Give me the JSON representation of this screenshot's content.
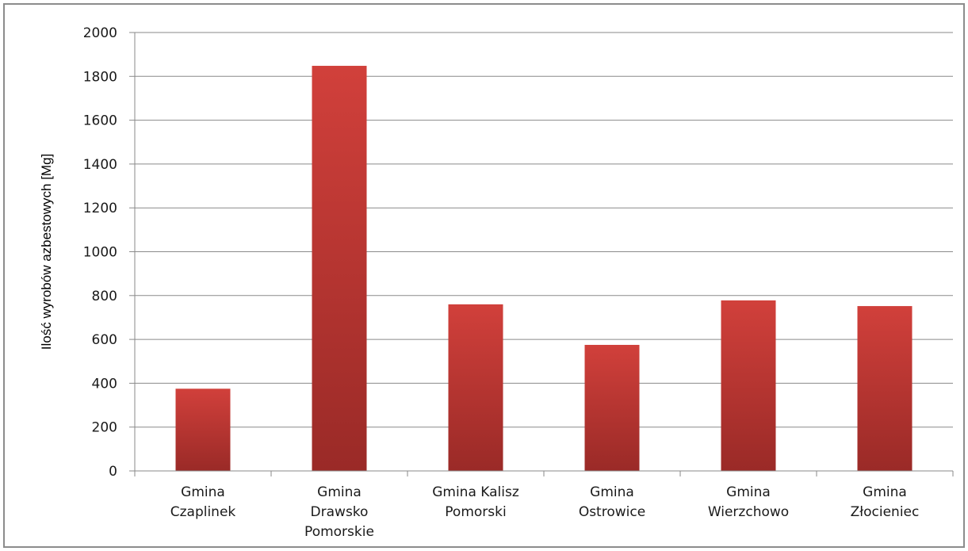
{
  "chart_data": {
    "type": "bar",
    "categories": [
      [
        "Gmina",
        "Czaplinek"
      ],
      [
        "Gmina",
        "Drawsko",
        "Pomorskie"
      ],
      [
        "Gmina Kalisz",
        "Pomorski"
      ],
      [
        "Gmina",
        "Ostrowice"
      ],
      [
        "Gmina",
        "Wierzchowo"
      ],
      [
        "Gmina",
        "Złocieniec"
      ]
    ],
    "values": [
      375,
      1848,
      760,
      575,
      778,
      752
    ],
    "ylabel": "Ilość wyrobów azbestowych [Mg]",
    "ylim": [
      0,
      2000
    ],
    "yticks": [
      0,
      200,
      400,
      600,
      800,
      1000,
      1200,
      1400,
      1600,
      1800,
      2000
    ],
    "grid": true,
    "legend": "none",
    "colors": {
      "bar_top": "#d1403b",
      "bar_bottom": "#9a2a27",
      "grid": "#8a8a8a"
    }
  }
}
